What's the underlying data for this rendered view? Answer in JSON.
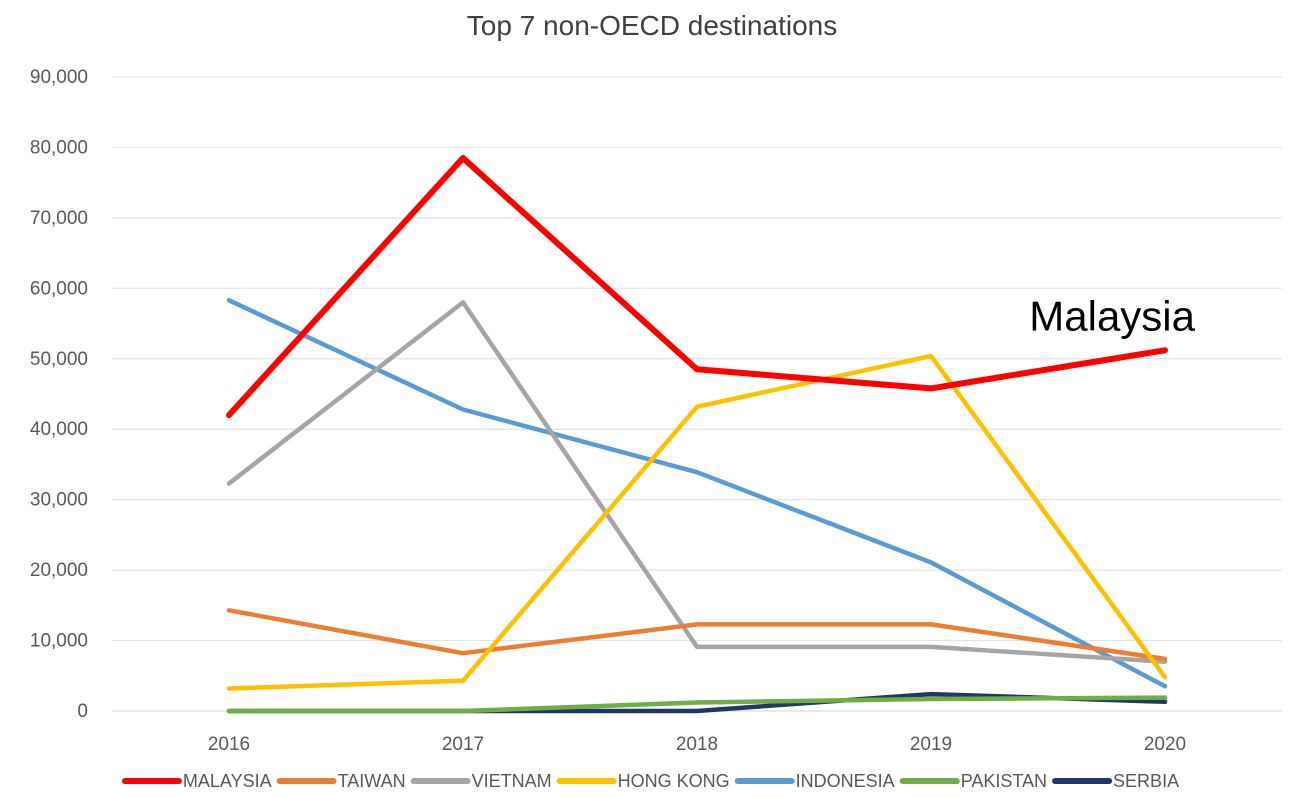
{
  "chart_data": {
    "type": "line",
    "title": "Top 7 non-OECD destinations",
    "xlabel": "",
    "ylabel": "",
    "categories": [
      "2016",
      "2017",
      "2018",
      "2019",
      "2020"
    ],
    "ylim": [
      0,
      90000
    ],
    "yticks": [
      0,
      10000,
      20000,
      30000,
      40000,
      50000,
      60000,
      70000,
      80000,
      90000
    ],
    "ytick_labels": [
      "0",
      "10,000",
      "20,000",
      "30,000",
      "40,000",
      "50,000",
      "60,000",
      "70,000",
      "80,000",
      "90,000"
    ],
    "grid": true,
    "legend_position": "bottom",
    "series": [
      {
        "name": "MALAYSIA",
        "color": "#ff0000",
        "values": [
          42000,
          78500,
          48500,
          45800,
          51200
        ]
      },
      {
        "name": "TAIWAN",
        "color": "#ed7d31",
        "values": [
          14300,
          8200,
          12300,
          12300,
          7400
        ]
      },
      {
        "name": "VIETNAM",
        "color": "#a5a5a5",
        "values": [
          32300,
          58000,
          9100,
          9100,
          7000
        ]
      },
      {
        "name": "HONG KONG",
        "color": "#ffc000",
        "values": [
          3200,
          4300,
          43200,
          50400,
          4800
        ]
      },
      {
        "name": "INDONESIA",
        "color": "#5b9bd5",
        "values": [
          58300,
          42800,
          33900,
          21100,
          3500
        ]
      },
      {
        "name": "PAKISTAN",
        "color": "#70ad47",
        "values": [
          0,
          0,
          1200,
          1700,
          1900
        ]
      },
      {
        "name": "SERBIA",
        "color": "#203864",
        "values": [
          0,
          0,
          0,
          2400,
          1300
        ]
      }
    ],
    "annotations": [
      {
        "text": "Malaysia",
        "series": "MALAYSIA",
        "category": "2020"
      }
    ]
  }
}
